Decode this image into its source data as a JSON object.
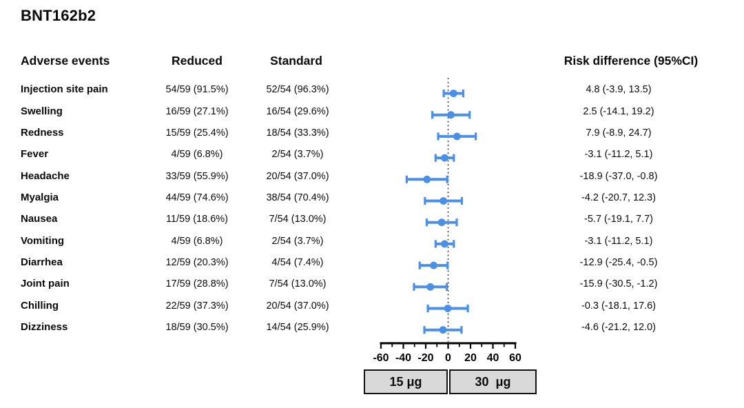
{
  "title": "BNT162b2",
  "headers": {
    "adverse_events": "Adverse events",
    "reduced": "Reduced",
    "standard": "Standard",
    "risk_difference": "Risk difference (95%CI)"
  },
  "rows": [
    {
      "event": "Injection site pain",
      "reduced": "54/59 (91.5%)",
      "standard": "52/54 (96.3%)",
      "risk": "4.8 (-3.9, 13.5)"
    },
    {
      "event": "Swelling",
      "reduced": "16/59 (27.1%)",
      "standard": "16/54 (29.6%)",
      "risk": "2.5 (-14.1, 19.2)"
    },
    {
      "event": "Redness",
      "reduced": "15/59 (25.4%)",
      "standard": "18/54 (33.3%)",
      "risk": "7.9 (-8.9, 24.7)"
    },
    {
      "event": "Fever",
      "reduced": "4/59 (6.8%)",
      "standard": "2/54 (3.7%)",
      "risk": "-3.1 (-11.2, 5.1)"
    },
    {
      "event": "Headache",
      "reduced": "33/59 (55.9%)",
      "standard": "20/54 (37.0%)",
      "risk": "-18.9 (-37.0, -0.8)"
    },
    {
      "event": "Myalgia",
      "reduced": "44/59 (74.6%)",
      "standard": "38/54 (70.4%)",
      "risk": "-4.2 (-20.7, 12.3)"
    },
    {
      "event": "Nausea",
      "reduced": "11/59 (18.6%)",
      "standard": "7/54 (13.0%)",
      "risk": "-5.7 (-19.1, 7.7)"
    },
    {
      "event": "Vomiting",
      "reduced": "4/59 (6.8%)",
      "standard": "2/54 (3.7%)",
      "risk": "-3.1 (-11.2, 5.1)"
    },
    {
      "event": "Diarrhea",
      "reduced": "12/59 (20.3%)",
      "standard": "4/54 (7.4%)",
      "risk": "-12.9 (-25.4, -0.5)"
    },
    {
      "event": "Joint pain",
      "reduced": "17/59 (28.8%)",
      "standard": "7/54 (13.0%)",
      "risk": "-15.9 (-30.5, -1.2)"
    },
    {
      "event": "Chilling",
      "reduced": "22/59 (37.3%)",
      "standard": "20/54 (37.0%)",
      "risk": "-0.3 (-18.1, 17.6)"
    },
    {
      "event": "Dizziness",
      "reduced": "18/59 (30.5%)",
      "standard": "14/54 (25.9%)",
      "risk": "-4.6 (-21.2, 12.0)"
    }
  ],
  "chart_data": {
    "type": "scatter",
    "subtype": "forest-plot-with-95ci",
    "title": "BNT162b2",
    "categories": [
      "Injection site pain",
      "Swelling",
      "Redness",
      "Fever",
      "Headache",
      "Myalgia",
      "Nausea",
      "Vomiting",
      "Diarrhea",
      "Joint pain",
      "Chilling",
      "Dizziness"
    ],
    "series": [
      {
        "name": "Risk difference (95%CI)",
        "estimate": [
          4.8,
          2.5,
          7.9,
          -3.1,
          -18.9,
          -4.2,
          -5.7,
          -3.1,
          -12.9,
          -15.9,
          -0.3,
          -4.6
        ],
        "ci_low": [
          -3.9,
          -14.1,
          -8.9,
          -11.2,
          -37.0,
          -20.7,
          -19.1,
          -11.2,
          -25.4,
          -30.5,
          -18.1,
          -21.2
        ],
        "ci_high": [
          13.5,
          19.2,
          24.7,
          5.1,
          -0.8,
          12.3,
          7.7,
          5.1,
          -0.5,
          -1.2,
          17.6,
          12.0
        ]
      }
    ],
    "xlim": [
      -60,
      60
    ],
    "xticks": [
      -60,
      -40,
      -20,
      0,
      20,
      40,
      60
    ],
    "minor_xticks": [
      -50,
      -30,
      -10,
      10,
      30,
      50
    ],
    "reference_line": 0,
    "grid": false,
    "legend_position": "bottom",
    "marker_color": "#4a8fe8",
    "axis_color": "#000000",
    "reference_line_style": "dotted"
  },
  "legend": {
    "left_label": "15 μg",
    "right_label": "30  μg",
    "fill_color": "#d9d9d9"
  }
}
